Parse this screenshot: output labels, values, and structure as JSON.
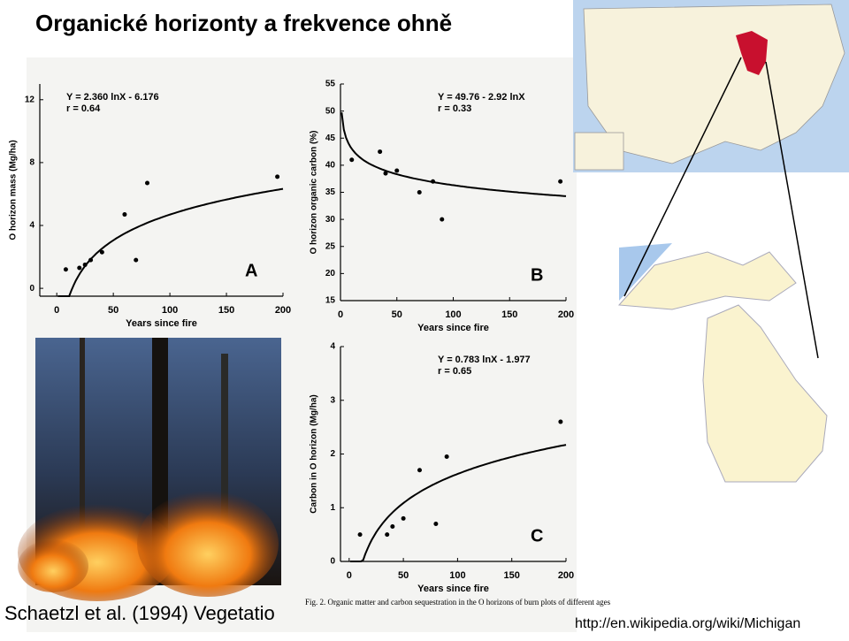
{
  "title": "Organické horizonty a frekvence ohně",
  "citation": "Schaetzl et al. (1994) Vegetatio",
  "caption": "Fig. 2.  Organic matter and carbon sequestration in the O horizons of burn plots of different ages",
  "url": "http://en.wikipedia.org/wiki/Michigan",
  "chart_data": [
    {
      "type": "scatter",
      "panel": "A",
      "ylabel": "O horizon mass (Mg/ha)",
      "xlabel": "Years since fire",
      "equation": "Y = 2.360 lnX - 6.176",
      "r": "r = 0.64",
      "fit": {
        "a": 2.36,
        "b": -6.176
      },
      "x": [
        8,
        20,
        25,
        30,
        40,
        60,
        70,
        80,
        195
      ],
      "values": [
        1.2,
        1.3,
        1.5,
        1.8,
        2.3,
        4.7,
        1.8,
        6.7,
        7.1
      ],
      "xlim": [
        -15,
        200
      ],
      "ylim": [
        -0.5,
        13
      ],
      "xticks": [
        0,
        50,
        100,
        150,
        200
      ],
      "yticks": [
        0,
        4,
        8,
        12
      ]
    },
    {
      "type": "scatter",
      "panel": "B",
      "ylabel": "O horizon organic carbon (%)",
      "xlabel": "Years since fire",
      "equation": "Y = 49.76 - 2.92 lnX",
      "r": "r = 0.33",
      "fit": {
        "a": -2.92,
        "b": 49.76
      },
      "x": [
        10,
        35,
        40,
        50,
        70,
        82,
        90,
        195
      ],
      "values": [
        41,
        42.5,
        38.5,
        39,
        35,
        37,
        30,
        37
      ],
      "xlim": [
        0,
        200
      ],
      "ylim": [
        15,
        55
      ],
      "xticks": [
        0,
        50,
        100,
        150,
        200
      ],
      "yticks": [
        15,
        20,
        25,
        30,
        35,
        40,
        45,
        50,
        55
      ]
    },
    {
      "type": "scatter",
      "panel": "C",
      "ylabel": "Carbon in O horizon (Mg/ha)",
      "xlabel": "Years since fire",
      "equation": "Y = 0.783 lnX - 1.977",
      "r": "r = 0.65",
      "fit": {
        "a": 0.783,
        "b": -1.977
      },
      "x": [
        10,
        35,
        40,
        50,
        65,
        80,
        90,
        195
      ],
      "values": [
        0.5,
        0.5,
        0.65,
        0.8,
        1.7,
        0.7,
        1.95,
        2.6
      ],
      "xlim": [
        -8,
        200
      ],
      "ylim": [
        0,
        4
      ],
      "xticks": [
        0,
        50,
        100,
        150,
        200
      ],
      "yticks": [
        0,
        1,
        2,
        3,
        4
      ]
    }
  ]
}
